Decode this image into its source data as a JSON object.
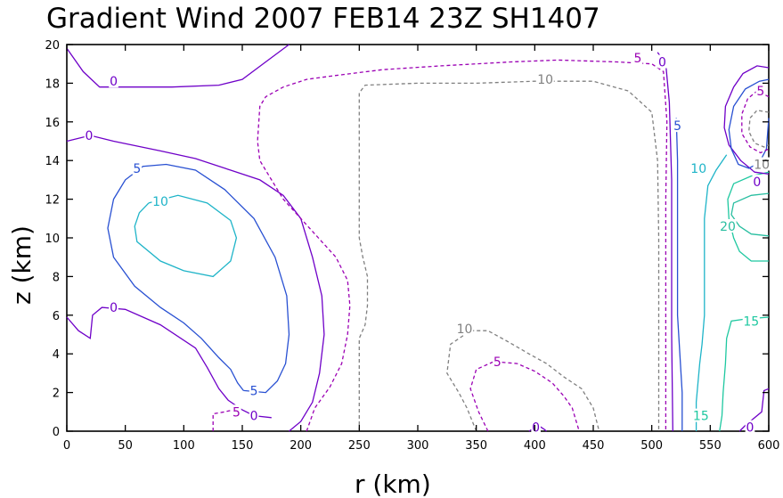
{
  "chart_data": {
    "type": "contour",
    "title": "Gradient Wind 2007 FEB14 23Z   SH1407",
    "xlabel": "r (km)",
    "ylabel": "z (km)",
    "xlim": [
      0,
      600
    ],
    "ylim": [
      0,
      20
    ],
    "xticks": [
      "0",
      "50",
      "100",
      "150",
      "200",
      "250",
      "300",
      "350",
      "400",
      "450",
      "500",
      "550",
      "600"
    ],
    "yticks": [
      "0",
      "2",
      "4",
      "6",
      "8",
      "10",
      "12",
      "14",
      "16",
      "18",
      "20"
    ],
    "grid": false,
    "colors": {
      "-10": "#808080",
      "-5": "#9b00b4",
      "0": "#6f00c8",
      "5": "#2850d2",
      "10": "#1eb4c8",
      "15": "#1ec8a0",
      "20": "#28bea0"
    },
    "contours": [
      {
        "level": 0,
        "dashed": false,
        "points": [
          [
            0,
            19.8
          ],
          [
            14,
            18.6
          ],
          [
            28,
            17.8
          ],
          [
            55,
            17.8
          ],
          [
            90,
            17.8
          ],
          [
            130,
            17.9
          ],
          [
            150,
            18.2
          ],
          [
            170,
            19.1
          ],
          [
            190,
            20
          ]
        ]
      },
      {
        "level": 0,
        "dashed": false,
        "points": [
          [
            0,
            15.0
          ],
          [
            20,
            15.3
          ],
          [
            40,
            15.0
          ],
          [
            80,
            14.5
          ],
          [
            110,
            14.1
          ],
          [
            140,
            13.5
          ],
          [
            165,
            13.0
          ],
          [
            185,
            12.2
          ],
          [
            200,
            11.0
          ],
          [
            210,
            9.0
          ],
          [
            218,
            7.0
          ],
          [
            220,
            5.0
          ],
          [
            216,
            3.0
          ],
          [
            210,
            1.5
          ],
          [
            200,
            0.5
          ],
          [
            190,
            0
          ]
        ]
      },
      {
        "level": 0,
        "dashed": false,
        "points": [
          [
            0,
            5.9
          ],
          [
            10,
            5.2
          ],
          [
            20,
            4.8
          ],
          [
            22,
            6.0
          ],
          [
            30,
            6.4
          ],
          [
            50,
            6.3
          ],
          [
            80,
            5.5
          ],
          [
            110,
            4.3
          ],
          [
            120,
            3.3
          ],
          [
            130,
            2.2
          ],
          [
            138,
            1.6
          ],
          [
            150,
            1.1
          ],
          [
            160,
            0.8
          ],
          [
            175,
            0.7
          ]
        ]
      },
      {
        "level": -5,
        "dashed": true,
        "points": [
          [
            125,
            0
          ],
          [
            125,
            0.9
          ],
          [
            135,
            1.0
          ],
          [
            142,
            1.1
          ]
        ]
      },
      {
        "level": -5,
        "dashed": true,
        "points": [
          [
            205,
            0
          ],
          [
            212,
            1.2
          ],
          [
            225,
            2.3
          ],
          [
            235,
            3.5
          ],
          [
            240,
            5.0
          ],
          [
            242,
            6.5
          ],
          [
            240,
            7.8
          ],
          [
            230,
            9.0
          ],
          [
            215,
            10.0
          ],
          [
            200,
            11.0
          ],
          [
            185,
            12.0
          ],
          [
            175,
            13.0
          ],
          [
            165,
            14.0
          ],
          [
            163,
            15.0
          ],
          [
            165,
            16.8
          ],
          [
            170,
            17.3
          ],
          [
            185,
            17.8
          ],
          [
            205,
            18.2
          ],
          [
            230,
            18.4
          ],
          [
            270,
            18.7
          ],
          [
            320,
            18.9
          ],
          [
            380,
            19.1
          ],
          [
            420,
            19.2
          ],
          [
            470,
            19.1
          ],
          [
            500,
            19.0
          ],
          [
            510,
            18.6
          ],
          [
            513,
            16
          ],
          [
            512,
            12
          ],
          [
            512,
            8
          ],
          [
            512,
            4
          ],
          [
            512,
            0
          ]
        ]
      },
      {
        "level": 5,
        "dashed": false,
        "points": [
          [
            151,
            2.1
          ],
          [
            146,
            2.5
          ],
          [
            140,
            3.2
          ],
          [
            130,
            3.8
          ],
          [
            115,
            4.8
          ],
          [
            100,
            5.6
          ],
          [
            80,
            6.4
          ],
          [
            58,
            7.5
          ],
          [
            40,
            9.0
          ],
          [
            35,
            10.5
          ],
          [
            40,
            12.0
          ],
          [
            50,
            13.0
          ],
          [
            65,
            13.7
          ],
          [
            85,
            13.8
          ],
          [
            110,
            13.5
          ],
          [
            135,
            12.5
          ],
          [
            160,
            11.0
          ],
          [
            178,
            9.0
          ],
          [
            188,
            7.0
          ],
          [
            190,
            5.0
          ],
          [
            187,
            3.5
          ],
          [
            180,
            2.6
          ],
          [
            170,
            2.0
          ],
          [
            151,
            2.1
          ]
        ]
      },
      {
        "level": 10,
        "dashed": false,
        "points": [
          [
            70,
            11.8
          ],
          [
            95,
            12.2
          ],
          [
            120,
            11.8
          ],
          [
            140,
            10.9
          ],
          [
            145,
            10.0
          ],
          [
            140,
            8.8
          ],
          [
            125,
            8.0
          ],
          [
            100,
            8.3
          ],
          [
            80,
            8.8
          ],
          [
            60,
            9.8
          ],
          [
            58,
            10.6
          ],
          [
            62,
            11.3
          ],
          [
            70,
            11.8
          ]
        ]
      },
      {
        "level": -10,
        "dashed": true,
        "points": [
          [
            250,
            0
          ],
          [
            250,
            4.8
          ],
          [
            255,
            5.5
          ],
          [
            257,
            6.5
          ],
          [
            257,
            8.0
          ],
          [
            253,
            9.0
          ],
          [
            250,
            10.0
          ],
          [
            250,
            12
          ],
          [
            250,
            15
          ],
          [
            250,
            17.5
          ],
          [
            255,
            17.9
          ],
          [
            300,
            18.0
          ],
          [
            350,
            18.0
          ],
          [
            400,
            18.1
          ],
          [
            450,
            18.1
          ],
          [
            480,
            17.6
          ],
          [
            500,
            16.5
          ],
          [
            505,
            14
          ],
          [
            506,
            10
          ],
          [
            506,
            5
          ],
          [
            506,
            0
          ]
        ]
      },
      {
        "level": -10,
        "dashed": true,
        "points": [
          [
            350,
            0
          ],
          [
            342,
            1.2
          ],
          [
            335,
            2.0
          ],
          [
            325,
            3.0
          ],
          [
            328,
            4.5
          ],
          [
            345,
            5.2
          ],
          [
            360,
            5.2
          ],
          [
            375,
            4.7
          ],
          [
            395,
            4.0
          ],
          [
            410,
            3.5
          ],
          [
            425,
            2.8
          ],
          [
            440,
            2.2
          ],
          [
            450,
            1.2
          ],
          [
            455,
            0
          ]
        ]
      },
      {
        "level": -5,
        "dashed": true,
        "points": [
          [
            360,
            0
          ],
          [
            352,
            1.0
          ],
          [
            345,
            2.2
          ],
          [
            350,
            3.2
          ],
          [
            365,
            3.6
          ],
          [
            385,
            3.5
          ],
          [
            400,
            3.1
          ],
          [
            415,
            2.5
          ],
          [
            425,
            1.8
          ],
          [
            432,
            1.2
          ],
          [
            435,
            0.6
          ],
          [
            438,
            0
          ]
        ]
      },
      {
        "level": 0,
        "dashed": false,
        "points": [
          [
            395,
            0
          ],
          [
            403,
            0.3
          ],
          [
            408,
            0.1
          ],
          [
            410,
            0
          ]
        ]
      },
      {
        "level": 0,
        "dashed": false,
        "points": [
          [
            505,
            19.6
          ],
          [
            512,
            19.0
          ],
          [
            515,
            17
          ],
          [
            516,
            15
          ],
          [
            517,
            13
          ],
          [
            517,
            9
          ],
          [
            517,
            5
          ],
          [
            518,
            0
          ]
        ]
      },
      {
        "level": 5,
        "dashed": false,
        "points": [
          [
            521,
            16.2
          ],
          [
            522,
            14
          ],
          [
            522,
            11
          ],
          [
            522,
            8
          ],
          [
            522,
            6
          ],
          [
            524,
            4
          ],
          [
            526,
            2
          ],
          [
            526,
            0
          ]
        ]
      },
      {
        "level": 10,
        "dashed": false,
        "points": [
          [
            564,
            14.3
          ],
          [
            555,
            13.5
          ],
          [
            548,
            12.7
          ],
          [
            545,
            11
          ],
          [
            545,
            9
          ],
          [
            545,
            6.0
          ],
          [
            543,
            4.5
          ],
          [
            541,
            3.5
          ],
          [
            538,
            1.5
          ],
          [
            538,
            0
          ]
        ]
      },
      {
        "level": 20,
        "dashed": false,
        "points": [
          [
            600,
            10.1
          ],
          [
            585,
            10.2
          ],
          [
            575,
            10.6
          ],
          [
            568,
            11.2
          ],
          [
            570,
            11.8
          ],
          [
            585,
            12.2
          ],
          [
            600,
            12.3
          ]
        ]
      },
      {
        "level": 15,
        "dashed": false,
        "points": [
          [
            600,
            8.8
          ],
          [
            585,
            8.8
          ],
          [
            575,
            9.3
          ],
          [
            570,
            10
          ],
          [
            566,
            11
          ],
          [
            565,
            12
          ],
          [
            570,
            12.8
          ],
          [
            585,
            13.2
          ],
          [
            600,
            13.4
          ]
        ]
      },
      {
        "level": 15,
        "dashed": false,
        "points": [
          [
            600,
            5.9
          ],
          [
            580,
            5.8
          ],
          [
            568,
            5.7
          ],
          [
            564,
            4.8
          ],
          [
            563,
            3.5
          ],
          [
            561,
            2.0
          ],
          [
            560,
            0.8
          ],
          [
            558,
            0
          ]
        ]
      },
      {
        "level": 0,
        "dashed": false,
        "points": [
          [
            600,
            18.8
          ],
          [
            590,
            18.9
          ],
          [
            578,
            18.5
          ],
          [
            570,
            17.8
          ],
          [
            563,
            16.8
          ],
          [
            562,
            15.7
          ],
          [
            566,
            14.8
          ],
          [
            576,
            14.0
          ],
          [
            588,
            13.4
          ],
          [
            600,
            13.3
          ]
        ]
      },
      {
        "level": 5,
        "dashed": false,
        "points": [
          [
            600,
            16.2
          ],
          [
            598,
            14.6
          ],
          [
            592,
            13.9
          ],
          [
            583,
            13.6
          ],
          [
            574,
            13.8
          ],
          [
            568,
            14.6
          ],
          [
            566,
            15.6
          ],
          [
            570,
            16.8
          ],
          [
            580,
            17.7
          ],
          [
            592,
            18.1
          ],
          [
            600,
            18.2
          ]
        ]
      },
      {
        "level": -5,
        "dashed": true,
        "points": [
          [
            600,
            17.3
          ],
          [
            590,
            17.6
          ],
          [
            582,
            17.2
          ],
          [
            577,
            16.4
          ],
          [
            577,
            15.4
          ],
          [
            584,
            14.7
          ],
          [
            593,
            14.4
          ],
          [
            600,
            14.6
          ]
        ]
      },
      {
        "level": -10,
        "dashed": true,
        "points": [
          [
            600,
            16.5
          ],
          [
            590,
            16.6
          ],
          [
            584,
            16.2
          ],
          [
            583,
            15.5
          ],
          [
            588,
            14.9
          ],
          [
            596,
            14.7
          ],
          [
            600,
            14.8
          ]
        ]
      },
      {
        "level": 0,
        "dashed": false,
        "points": [
          [
            600,
            2.2
          ],
          [
            596,
            2.1
          ],
          [
            594,
            1.0
          ],
          [
            580,
            0.3
          ],
          [
            575,
            0
          ]
        ]
      }
    ],
    "labels": [
      {
        "text": "0",
        "x": 40,
        "y": 18.1,
        "level": 0
      },
      {
        "text": "0",
        "x": 19,
        "y": 15.3,
        "level": 0
      },
      {
        "text": "5",
        "x": 60,
        "y": 13.6,
        "level": 5
      },
      {
        "text": "10",
        "x": 80,
        "y": 11.9,
        "level": 10
      },
      {
        "text": "0",
        "x": 40,
        "y": 6.4,
        "level": 0
      },
      {
        "text": "5",
        "x": 160,
        "y": 2.1,
        "level": 5
      },
      {
        "text": "5",
        "x": 145,
        "y": 1.0,
        "level": -5
      },
      {
        "text": "0",
        "x": 160,
        "y": 0.8,
        "level": 0
      },
      {
        "text": "10",
        "x": 409,
        "y": 18.2,
        "level": -10
      },
      {
        "text": "5",
        "x": 488,
        "y": 19.3,
        "level": -5
      },
      {
        "text": "0",
        "x": 509,
        "y": 19.1,
        "level": 0
      },
      {
        "text": "10",
        "x": 340,
        "y": 5.3,
        "level": -10
      },
      {
        "text": "5",
        "x": 368,
        "y": 3.6,
        "level": -5
      },
      {
        "text": "0",
        "x": 401,
        "y": 0.2,
        "level": 0
      },
      {
        "text": "5",
        "x": 522,
        "y": 15.8,
        "level": 5
      },
      {
        "text": "10",
        "x": 540,
        "y": 13.6,
        "level": 10
      },
      {
        "text": "20",
        "x": 565,
        "y": 10.6,
        "level": 20
      },
      {
        "text": "15",
        "x": 585,
        "y": 5.7,
        "level": 15
      },
      {
        "text": "15",
        "x": 542,
        "y": 0.8,
        "level": 15
      },
      {
        "text": "5",
        "x": 593,
        "y": 17.6,
        "level": -5
      },
      {
        "text": "10",
        "x": 594,
        "y": 13.8,
        "level": -10
      },
      {
        "text": "0",
        "x": 590,
        "y": 12.9,
        "level": 0
      },
      {
        "text": "0",
        "x": 584,
        "y": 0.2,
        "level": 0
      }
    ]
  }
}
